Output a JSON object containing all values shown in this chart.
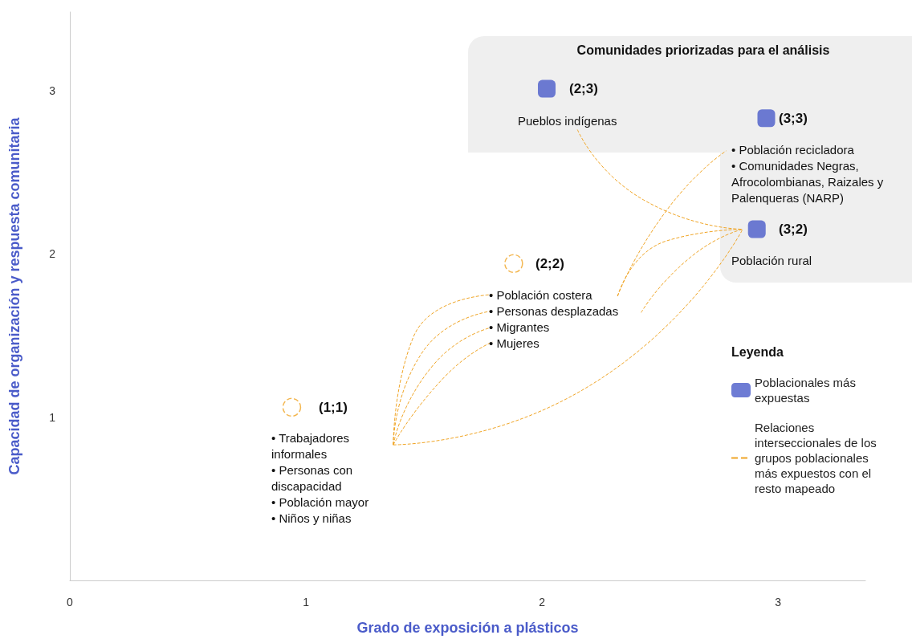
{
  "chart_data": {
    "type": "scatter",
    "xlabel": "Grado de exposición a plásticos",
    "ylabel": "Capacidad de organización y respuesta comunitaria",
    "legend_title": "Leyenda",
    "legend": "right",
    "xlim": [
      0,
      3.37
    ],
    "ylim": [
      0,
      3.48
    ],
    "xticks": [
      0,
      1,
      2,
      3
    ],
    "yticks": [
      1,
      2,
      3
    ],
    "series": [
      {
        "name": "Poblacionales más expuestas",
        "color": "#4a5bc9",
        "marker": "square",
        "x": [
          2.02,
          2.95,
          2.91
        ],
        "values": [
          3.01,
          2.83,
          2.15
        ]
      },
      {
        "color": "#f0a526",
        "marker": "circle",
        "line_style": "dashed",
        "x": [
          0.94,
          1.88
        ],
        "values": [
          1.06,
          1.94
        ]
      },
      {
        "name": "Relaciones interseccionales de los grupos poblacionales más expuestos con el resto mapeado",
        "type": "line",
        "line_style": "dashed",
        "color": "#f0a526",
        "x": [
          1.37,
          1.455,
          1.79,
          null,
          1.37,
          1.49,
          1.79,
          null,
          1.37,
          1.54,
          1.79,
          null,
          1.37,
          1.59,
          1.79,
          null,
          1.37,
          2.085,
          2.85,
          null,
          2.15,
          2.43,
          2.85,
          null,
          2.32,
          2.53,
          2.85,
          null,
          2.42,
          2.63,
          2.85,
          null,
          2.32,
          2.53,
          2.78
        ],
        "values": [
          0.83,
          1.49,
          1.75,
          null,
          0.83,
          1.39,
          1.65,
          null,
          0.83,
          1.32,
          1.55,
          null,
          0.83,
          1.25,
          1.46,
          null,
          0.83,
          1.098,
          2.15,
          null,
          2.76,
          2.33,
          2.15,
          null,
          1.74,
          2.08,
          2.15,
          null,
          1.64,
          1.98,
          2.15,
          null,
          1.74,
          2.27,
          2.63
        ]
      }
    ],
    "annotations": [
      "Comunidades priorizadas para el análisis",
      "(1;1)",
      "(2;2)",
      "(2;3)",
      "(3;3)",
      "(3;2)",
      "Pueblos indígenas",
      "• Población recicladora\n• Comunidades Negras,\nAfrocolombianas, Raizales y\nPalenqueras (NARP)",
      "Población rural",
      "• Población costera\n• Personas desplazadas\n• Migrantes\n• Mujeres",
      "• Trabajadores\ninformales\n• Personas con\ndiscapacidad\n• Población mayor\n• Niños y niñas"
    ]
  }
}
